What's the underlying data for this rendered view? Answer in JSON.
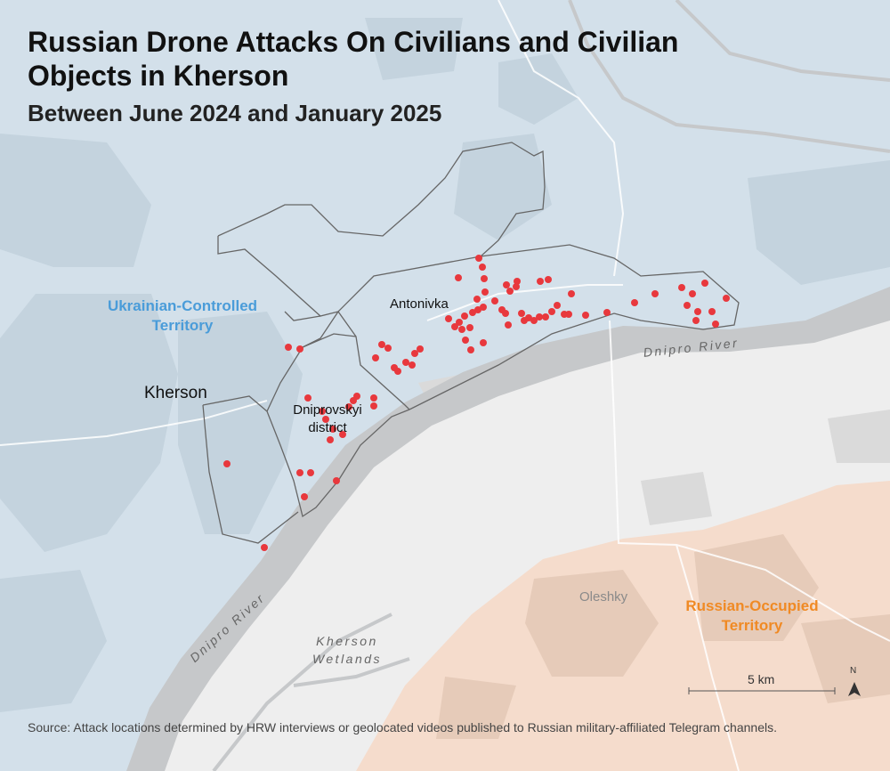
{
  "title": "Russian Drone Attacks On Civilians and Civilian Objects in Kherson",
  "subtitle": "Between June 2024 and January 2025",
  "labels": {
    "ukrainian_territory": "Ukrainian-Controlled Territory",
    "russian_territory": "Russian-Occupied Territory",
    "city": "Kherson",
    "district": "Dniprovskyi district",
    "antonivka": "Antonivka",
    "oleshky": "Oleshky",
    "river_right": "Dnipro River",
    "river_left": "Dnipro River",
    "wetlands": "Kherson Wetlands"
  },
  "scale": {
    "label": "5 km"
  },
  "north": {
    "label": "N"
  },
  "source": "Source: Attack locations determined by HRW interviews or geolocated videos published to Russian military-affiliated Telegram channels.",
  "colors": {
    "ukrainian_controlled": "#d3e0ea",
    "russian_occupied": "#f5dccc",
    "river": "#c6c8ca",
    "land": "#eeeeee",
    "urban_ukraine": "#c4d3de",
    "urban_russia": "#e6cbb9",
    "attack_marker": "#e8383d",
    "ukrainian_label": "#4a9cd9",
    "russian_label": "#f08a24"
  },
  "icons": {
    "north_arrow": "north-arrow-icon",
    "attack_marker": "red-dot"
  }
}
